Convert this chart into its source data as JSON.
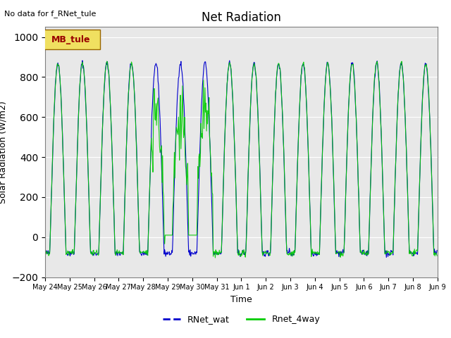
{
  "title": "Net Radiation",
  "ylabel": "Solar Radiation (W/m2)",
  "xlabel": "Time",
  "no_data_text": "No data for f_RNet_tule",
  "legend_box_text": "MB_tule",
  "legend_entries": [
    "RNet_wat",
    "Rnet_4way"
  ],
  "line_colors": [
    "#0000cc",
    "#00cc00"
  ],
  "ylim": [
    -200,
    1050
  ],
  "yticks": [
    -200,
    0,
    200,
    400,
    600,
    800,
    1000
  ],
  "bg_color": "#e8e8e8",
  "fig_bg": "#ffffff",
  "start_day": 143,
  "num_days": 16,
  "dt_hours": 0.5
}
